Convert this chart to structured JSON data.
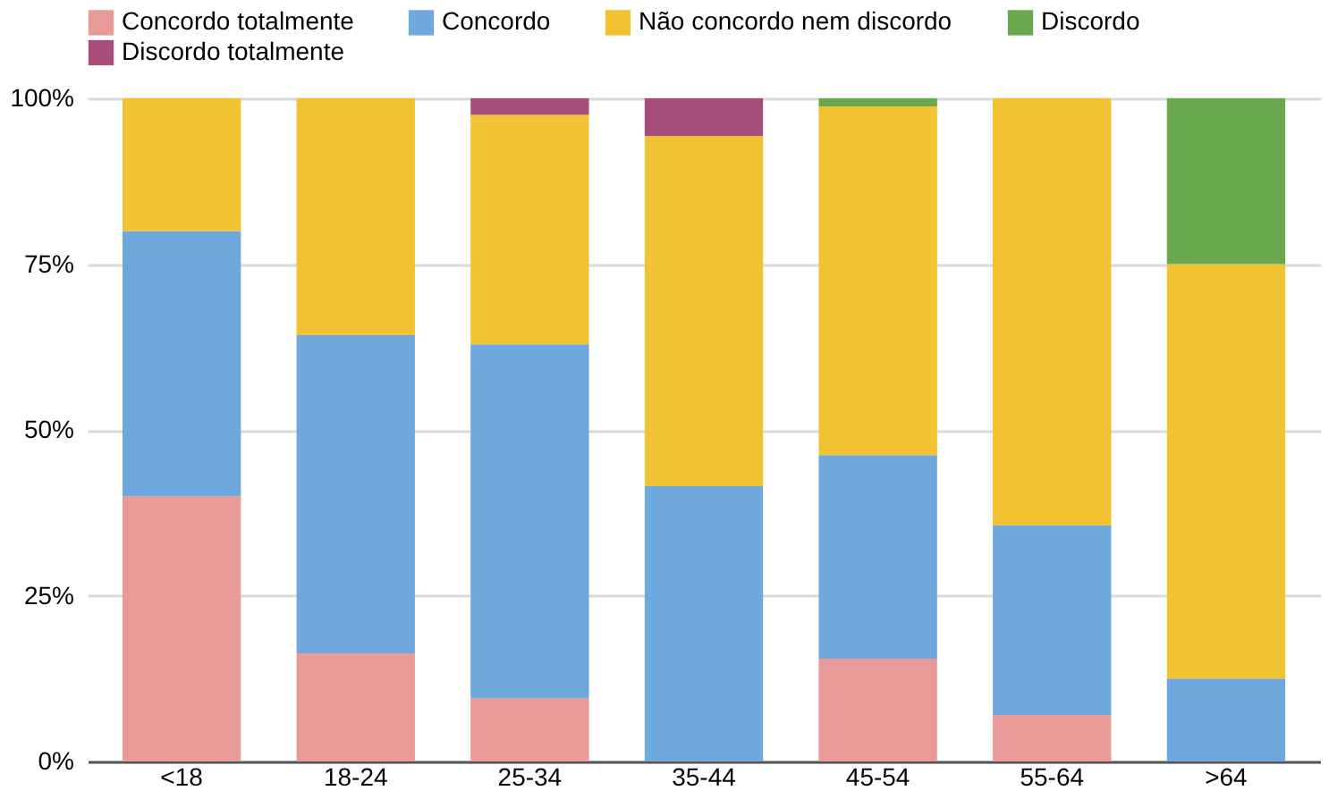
{
  "chart_data": {
    "type": "bar",
    "stacked": true,
    "categories": [
      "<18",
      "18-24",
      "25-34",
      "35-44",
      "45-54",
      "55-64",
      ">64"
    ],
    "series": [
      {
        "name": "Concordo totalmente",
        "color": "#ea9999",
        "values": [
          40,
          16.3,
          9.5,
          0,
          15.5,
          7,
          0
        ]
      },
      {
        "name": "Concordo",
        "color": "#6fa8dc",
        "values": [
          40,
          48,
          53.4,
          41.5,
          30.7,
          28.6,
          12.5
        ]
      },
      {
        "name": "Não concordo nem discordo",
        "color": "#f1c232",
        "values": [
          20,
          35.7,
          34.6,
          52.8,
          52.6,
          64.4,
          62.5
        ]
      },
      {
        "name": "Discordo",
        "color": "#6aa84f",
        "values": [
          0,
          0,
          0,
          0,
          1.2,
          0,
          25
        ]
      },
      {
        "name": "Discordo totalmente",
        "color": "#a64d79",
        "values": [
          0,
          0,
          2.5,
          5.7,
          0,
          0,
          0
        ]
      }
    ],
    "ylim": [
      0,
      100
    ],
    "yticks": [
      {
        "value": 0,
        "label": "0%"
      },
      {
        "value": 25,
        "label": "25%"
      },
      {
        "value": 50,
        "label": "50%"
      },
      {
        "value": 75,
        "label": "75%"
      },
      {
        "value": 100,
        "label": "100%"
      }
    ],
    "grid": "y",
    "legend": "top"
  }
}
